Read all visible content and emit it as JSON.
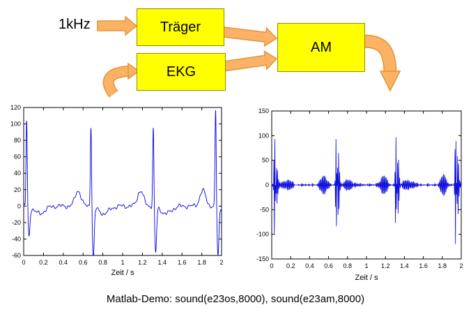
{
  "diagram": {
    "input_label": "1kHz",
    "boxes": [
      {
        "id": "traeger",
        "label": "Träger"
      },
      {
        "id": "ekg",
        "label": "EKG"
      },
      {
        "id": "am",
        "label": "AM"
      }
    ],
    "box_fill": "#ffff00",
    "box_border": "#8b8b00",
    "arrow_fill": "#fbb264",
    "arrow_border": "#e2943a"
  },
  "caption": "Matlab-Demo: sound(e23os,8000), sound(e23am,8000)",
  "chart_data": [
    {
      "type": "line",
      "id": "ecg",
      "title": "",
      "xlabel": "Zeit / s",
      "ylabel": "",
      "xlim": [
        0,
        2
      ],
      "ylim": [
        -60,
        120
      ],
      "xticks": [
        0,
        0.2,
        0.4,
        0.6,
        0.8,
        1,
        1.2,
        1.4,
        1.6,
        1.8,
        2
      ],
      "yticks": [
        -60,
        -40,
        -20,
        0,
        20,
        40,
        60,
        80,
        100,
        120
      ],
      "grid": false,
      "line_color": "#0000dd",
      "signal": {
        "kind": "ecg",
        "beats": [
          {
            "t": 0.03,
            "peak": 104,
            "dip": -35
          },
          {
            "t": 0.68,
            "peak": 100,
            "dip": -62
          },
          {
            "t": 1.31,
            "peak": 96,
            "dip": -56
          },
          {
            "t": 1.94,
            "peak": 118,
            "dip": -60
          }
        ],
        "t_bump_amp": 19,
        "t_bump_lead": 0.13,
        "noise_amp": 1.6
      }
    },
    {
      "type": "line",
      "id": "am",
      "title": "",
      "xlabel": "Zeit / s",
      "ylabel": "",
      "xlim": [
        0,
        2
      ],
      "ylim": [
        -150,
        150
      ],
      "xticks": [
        0,
        0.2,
        0.4,
        0.6,
        0.8,
        1,
        1.2,
        1.4,
        1.6,
        1.8,
        2
      ],
      "yticks": [
        -150,
        -100,
        -50,
        0,
        50,
        100,
        150
      ],
      "grid": false,
      "line_color": "#0000dd",
      "signal": {
        "kind": "am",
        "modulator": "ecg",
        "gain": 1.05,
        "carrier_hz": 1000,
        "carrier_hz_visual": 90
      }
    }
  ]
}
